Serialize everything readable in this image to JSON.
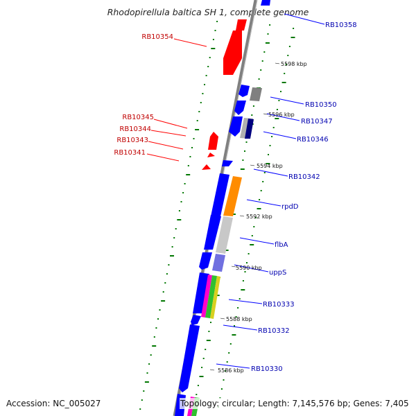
{
  "title": "Rhodopirellula baltica SH 1, complete genome",
  "accession": "Accession: NC_005027",
  "topology": "Topology: circular; Length: 7,145,576 bp; Genes: 7,405",
  "colors": {
    "forward_gene": "#0000ff",
    "reverse_gene": "#ff0000",
    "backbone": "#808080",
    "orf_tick": "#007700",
    "forward_label": "#0000b0",
    "reverse_label": "#c00000"
  },
  "scale_labels": [
    "5598 kbp",
    "5596 kbp",
    "5594 kbp",
    "5592 kbp",
    "5590 kbp",
    "5588 kbp",
    "5586 kbp"
  ],
  "forward_genes": [
    "RB10358",
    "RB10350",
    "RB10347",
    "RB10346",
    "RB10342",
    "rpdD",
    "flbA",
    "uppS",
    "RB10333",
    "RB10332",
    "RB10330"
  ],
  "reverse_genes": [
    "RB10354",
    "RB10345",
    "RB10344",
    "RB10343",
    "RB10341"
  ]
}
